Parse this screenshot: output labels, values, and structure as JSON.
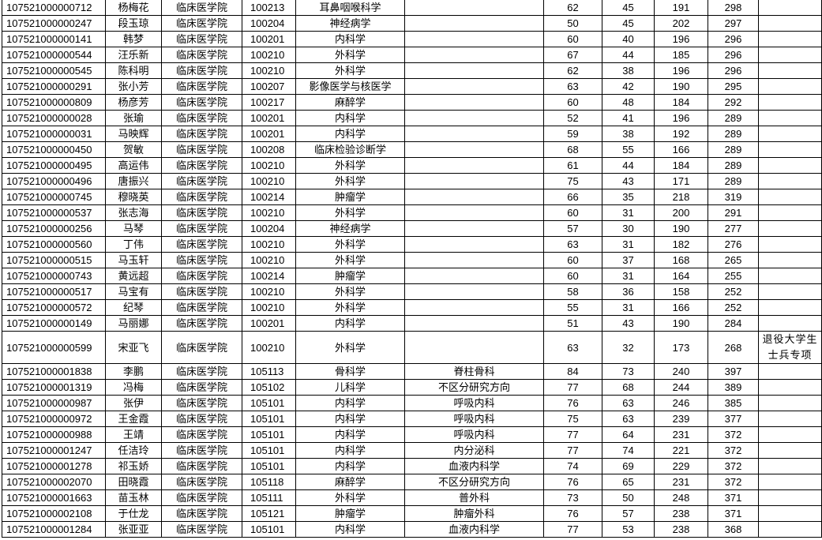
{
  "rows": [
    {
      "id": "107521000000712",
      "name": "杨梅花",
      "college": "临床医学院",
      "code": "100213",
      "major": "耳鼻咽喉科学",
      "direction": "",
      "s1": "62",
      "s2": "45",
      "s3": "191",
      "total": "298",
      "note": ""
    },
    {
      "id": "107521000000247",
      "name": "段玉琼",
      "college": "临床医学院",
      "code": "100204",
      "major": "神经病学",
      "direction": "",
      "s1": "50",
      "s2": "45",
      "s3": "202",
      "total": "297",
      "note": ""
    },
    {
      "id": "107521000000141",
      "name": "韩梦",
      "college": "临床医学院",
      "code": "100201",
      "major": "内科学",
      "direction": "",
      "s1": "60",
      "s2": "40",
      "s3": "196",
      "total": "296",
      "note": ""
    },
    {
      "id": "107521000000544",
      "name": "汪乐新",
      "college": "临床医学院",
      "code": "100210",
      "major": "外科学",
      "direction": "",
      "s1": "67",
      "s2": "44",
      "s3": "185",
      "total": "296",
      "note": ""
    },
    {
      "id": "107521000000545",
      "name": "陈科明",
      "college": "临床医学院",
      "code": "100210",
      "major": "外科学",
      "direction": "",
      "s1": "62",
      "s2": "38",
      "s3": "196",
      "total": "296",
      "note": ""
    },
    {
      "id": "107521000000291",
      "name": "张小芳",
      "college": "临床医学院",
      "code": "100207",
      "major": "影像医学与核医学",
      "direction": "",
      "s1": "63",
      "s2": "42",
      "s3": "190",
      "total": "295",
      "note": ""
    },
    {
      "id": "107521000000809",
      "name": "杨彦芳",
      "college": "临床医学院",
      "code": "100217",
      "major": "麻醉学",
      "direction": "",
      "s1": "60",
      "s2": "48",
      "s3": "184",
      "total": "292",
      "note": ""
    },
    {
      "id": "107521000000028",
      "name": "张瑜",
      "college": "临床医学院",
      "code": "100201",
      "major": "内科学",
      "direction": "",
      "s1": "52",
      "s2": "41",
      "s3": "196",
      "total": "289",
      "note": ""
    },
    {
      "id": "107521000000031",
      "name": "马映辉",
      "college": "临床医学院",
      "code": "100201",
      "major": "内科学",
      "direction": "",
      "s1": "59",
      "s2": "38",
      "s3": "192",
      "total": "289",
      "note": ""
    },
    {
      "id": "107521000000450",
      "name": "贺敏",
      "college": "临床医学院",
      "code": "100208",
      "major": "临床检验诊断学",
      "direction": "",
      "s1": "68",
      "s2": "55",
      "s3": "166",
      "total": "289",
      "note": ""
    },
    {
      "id": "107521000000495",
      "name": "高运伟",
      "college": "临床医学院",
      "code": "100210",
      "major": "外科学",
      "direction": "",
      "s1": "61",
      "s2": "44",
      "s3": "184",
      "total": "289",
      "note": ""
    },
    {
      "id": "107521000000496",
      "name": "唐振兴",
      "college": "临床医学院",
      "code": "100210",
      "major": "外科学",
      "direction": "",
      "s1": "75",
      "s2": "43",
      "s3": "171",
      "total": "289",
      "note": ""
    },
    {
      "id": "107521000000745",
      "name": "穆晓英",
      "college": "临床医学院",
      "code": "100214",
      "major": "肿瘤学",
      "direction": "",
      "s1": "66",
      "s2": "35",
      "s3": "218",
      "total": "319",
      "note": ""
    },
    {
      "id": "107521000000537",
      "name": "张志海",
      "college": "临床医学院",
      "code": "100210",
      "major": "外科学",
      "direction": "",
      "s1": "60",
      "s2": "31",
      "s3": "200",
      "total": "291",
      "note": ""
    },
    {
      "id": "107521000000256",
      "name": "马琴",
      "college": "临床医学院",
      "code": "100204",
      "major": "神经病学",
      "direction": "",
      "s1": "57",
      "s2": "30",
      "s3": "190",
      "total": "277",
      "note": ""
    },
    {
      "id": "107521000000560",
      "name": "丁伟",
      "college": "临床医学院",
      "code": "100210",
      "major": "外科学",
      "direction": "",
      "s1": "63",
      "s2": "31",
      "s3": "182",
      "total": "276",
      "note": ""
    },
    {
      "id": "107521000000515",
      "name": "马玉轩",
      "college": "临床医学院",
      "code": "100210",
      "major": "外科学",
      "direction": "",
      "s1": "60",
      "s2": "37",
      "s3": "168",
      "total": "265",
      "note": ""
    },
    {
      "id": "107521000000743",
      "name": "黄远超",
      "college": "临床医学院",
      "code": "100214",
      "major": "肿瘤学",
      "direction": "",
      "s1": "60",
      "s2": "31",
      "s3": "164",
      "total": "255",
      "note": ""
    },
    {
      "id": "107521000000517",
      "name": "马宝有",
      "college": "临床医学院",
      "code": "100210",
      "major": "外科学",
      "direction": "",
      "s1": "58",
      "s2": "36",
      "s3": "158",
      "total": "252",
      "note": ""
    },
    {
      "id": "107521000000572",
      "name": "纪琴",
      "college": "临床医学院",
      "code": "100210",
      "major": "外科学",
      "direction": "",
      "s1": "55",
      "s2": "31",
      "s3": "166",
      "total": "252",
      "note": ""
    },
    {
      "id": "107521000000149",
      "name": "马丽娜",
      "college": "临床医学院",
      "code": "100201",
      "major": "内科学",
      "direction": "",
      "s1": "51",
      "s2": "43",
      "s3": "190",
      "total": "284",
      "note": ""
    },
    {
      "id": "107521000000599",
      "name": "宋亚飞",
      "college": "临床医学院",
      "code": "100210",
      "major": "外科学",
      "direction": "",
      "s1": "63",
      "s2": "32",
      "s3": "173",
      "total": "268",
      "note": "退役大学生士兵专项"
    },
    {
      "id": "107521000001838",
      "name": "李鹏",
      "college": "临床医学院",
      "code": "105113",
      "major": "骨科学",
      "direction": "脊柱骨科",
      "s1": "84",
      "s2": "73",
      "s3": "240",
      "total": "397",
      "note": ""
    },
    {
      "id": "107521000001319",
      "name": "冯梅",
      "college": "临床医学院",
      "code": "105102",
      "major": "儿科学",
      "direction": "不区分研究方向",
      "s1": "77",
      "s2": "68",
      "s3": "244",
      "total": "389",
      "note": ""
    },
    {
      "id": "107521000000987",
      "name": "张伊",
      "college": "临床医学院",
      "code": "105101",
      "major": "内科学",
      "direction": "呼吸内科",
      "s1": "76",
      "s2": "63",
      "s3": "246",
      "total": "385",
      "note": ""
    },
    {
      "id": "107521000000972",
      "name": "王金霞",
      "college": "临床医学院",
      "code": "105101",
      "major": "内科学",
      "direction": "呼吸内科",
      "s1": "75",
      "s2": "63",
      "s3": "239",
      "total": "377",
      "note": ""
    },
    {
      "id": "107521000000988",
      "name": "王靖",
      "college": "临床医学院",
      "code": "105101",
      "major": "内科学",
      "direction": "呼吸内科",
      "s1": "77",
      "s2": "64",
      "s3": "231",
      "total": "372",
      "note": ""
    },
    {
      "id": "107521000001247",
      "name": "任洁玲",
      "college": "临床医学院",
      "code": "105101",
      "major": "内科学",
      "direction": "内分泌科",
      "s1": "77",
      "s2": "74",
      "s3": "221",
      "total": "372",
      "note": ""
    },
    {
      "id": "107521000001278",
      "name": "祁玉娇",
      "college": "临床医学院",
      "code": "105101",
      "major": "内科学",
      "direction": "血液内科学",
      "s1": "74",
      "s2": "69",
      "s3": "229",
      "total": "372",
      "note": ""
    },
    {
      "id": "107521000002070",
      "name": "田晓霞",
      "college": "临床医学院",
      "code": "105118",
      "major": "麻醉学",
      "direction": "不区分研究方向",
      "s1": "76",
      "s2": "65",
      "s3": "231",
      "total": "372",
      "note": ""
    },
    {
      "id": "107521000001663",
      "name": "苗玉林",
      "college": "临床医学院",
      "code": "105111",
      "major": "外科学",
      "direction": "普外科",
      "s1": "73",
      "s2": "50",
      "s3": "248",
      "total": "371",
      "note": ""
    },
    {
      "id": "107521000002108",
      "name": "于仕龙",
      "college": "临床医学院",
      "code": "105121",
      "major": "肿瘤学",
      "direction": "肿瘤外科",
      "s1": "76",
      "s2": "57",
      "s3": "238",
      "total": "371",
      "note": ""
    },
    {
      "id": "107521000001284",
      "name": "张亚亚",
      "college": "临床医学院",
      "code": "105101",
      "major": "内科学",
      "direction": "血液内科学",
      "s1": "77",
      "s2": "53",
      "s3": "238",
      "total": "368",
      "note": ""
    }
  ]
}
